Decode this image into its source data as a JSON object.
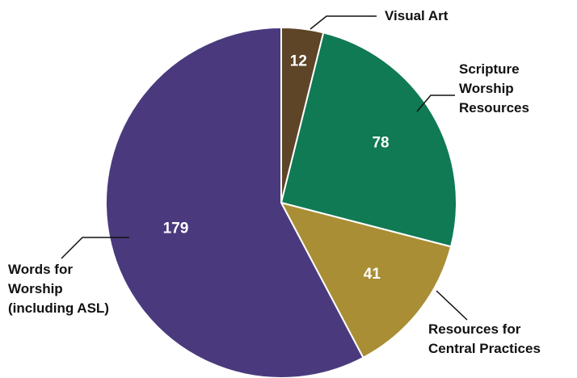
{
  "chart_data": {
    "type": "pie",
    "categories": [
      "Visual Art",
      "Scripture\nWorship\nResources",
      "Resources for\nCentral Practices",
      "Words for\nWorship\n(including ASL)"
    ],
    "values": [
      12,
      78,
      41,
      179
    ],
    "colors": [
      "#5e4527",
      "#0f7a53",
      "#a98e35",
      "#4a3a7d"
    ]
  }
}
